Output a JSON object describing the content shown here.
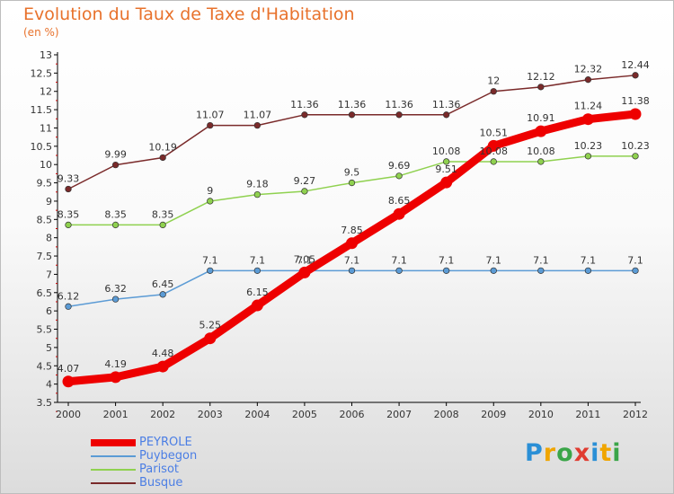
{
  "header": {
    "title": "Evolution du Taux de Taxe d'Habitation",
    "subtitle": "(en %)"
  },
  "chart_data": {
    "type": "line",
    "x": [
      "2000",
      "2001",
      "2002",
      "2003",
      "2004",
      "2005",
      "2006",
      "2007",
      "2008",
      "2009",
      "2010",
      "2011",
      "2012"
    ],
    "ylim": [
      3.5,
      13
    ],
    "yticks": [
      3.5,
      4,
      4.5,
      5,
      5.5,
      6,
      6.5,
      7,
      7.5,
      8,
      8.5,
      9,
      9.5,
      10,
      10.5,
      11,
      11.5,
      12,
      12.5,
      13
    ],
    "ytick_labels": [
      "3.5",
      "4",
      "4.5",
      "5",
      "5.5",
      "6",
      "6.5",
      "7",
      "7.5",
      "8",
      "8.5",
      "9",
      "9.5",
      "10",
      "10.5",
      "11",
      "11.5",
      "12",
      "12.5",
      "13"
    ],
    "grid": false,
    "legend_position": "bottom-left",
    "series": [
      {
        "name": "Busque",
        "color": "#7a2a2a",
        "emphasis": false,
        "values": [
          9.33,
          9.99,
          10.19,
          11.07,
          11.07,
          11.36,
          11.36,
          11.36,
          11.36,
          12,
          12.12,
          12.32,
          12.44
        ],
        "labels": [
          "9.33",
          "9.99",
          "10.19",
          "11.07",
          "11.07",
          "11.36",
          "11.36",
          "11.36",
          "11.36",
          "12",
          "12.12",
          "12.32",
          "12.44"
        ]
      },
      {
        "name": "Parisot",
        "color": "#8fd14f",
        "emphasis": false,
        "values": [
          8.35,
          8.35,
          8.35,
          9,
          9.18,
          9.27,
          9.5,
          9.69,
          10.08,
          10.08,
          10.08,
          10.23,
          10.23
        ],
        "labels": [
          "8.35",
          "8.35",
          "8.35",
          "9",
          "9.18",
          "9.27",
          "9.5",
          "9.69",
          "10.08",
          "10.08",
          "10.08",
          "10.23",
          "10.23"
        ]
      },
      {
        "name": "Puybegon",
        "color": "#5b9bd5",
        "emphasis": false,
        "values": [
          6.12,
          6.32,
          6.45,
          7.1,
          7.1,
          7.1,
          7.1,
          7.1,
          7.1,
          7.1,
          7.1,
          7.1,
          7.1
        ],
        "labels": [
          "6.12",
          "6.32",
          "6.45",
          "7.1",
          "7.1",
          "7.1",
          "7.1",
          "7.1",
          "7.1",
          "7.1",
          "7.1",
          "7.1",
          "7.1"
        ]
      },
      {
        "name": "PEYROLE",
        "color": "#ee0000",
        "emphasis": true,
        "values": [
          4.07,
          4.19,
          4.48,
          5.25,
          6.15,
          7.05,
          7.85,
          8.65,
          9.51,
          10.51,
          10.91,
          11.24,
          11.38
        ],
        "labels": [
          "4.07",
          "4.19",
          "4.48",
          "5.25",
          "6.15",
          "7.05",
          "7.85",
          "8.65",
          "9.51",
          "10.51",
          "10.91",
          "11.24",
          "11.38"
        ]
      }
    ]
  },
  "legend": {
    "items": [
      {
        "label": "PEYROLE",
        "color": "#ee0000"
      },
      {
        "label": "Puybegon",
        "color": "#5b9bd5"
      },
      {
        "label": "Parisot",
        "color": "#8fd14f"
      },
      {
        "label": "Busque",
        "color": "#7a2a2a"
      }
    ]
  },
  "logo": {
    "text": "Proxiti",
    "colors": [
      "#2a8fd6",
      "#f0a500",
      "#3aa548",
      "#e03c31",
      "#2a8fd6",
      "#f0a500",
      "#3aa548"
    ]
  }
}
